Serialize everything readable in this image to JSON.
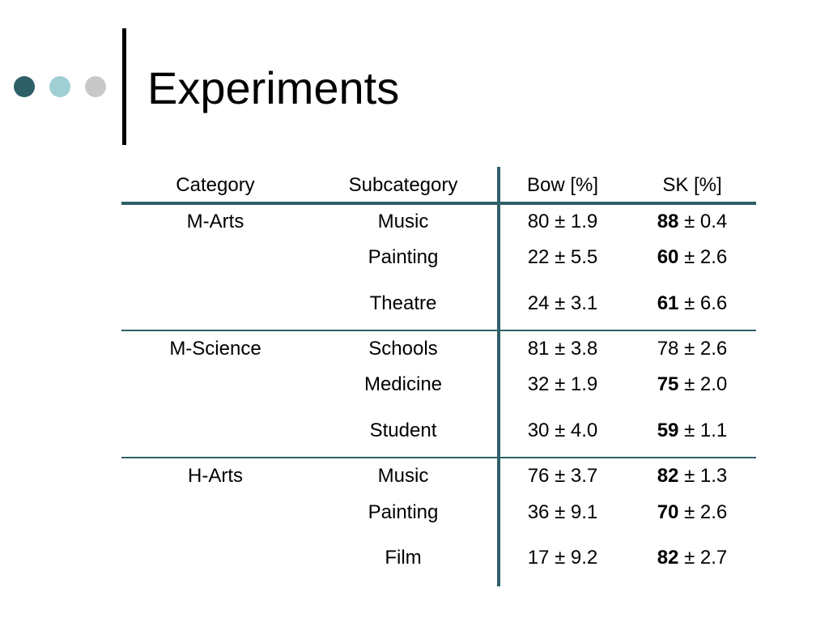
{
  "slide": {
    "title": "Experiments",
    "colors": {
      "accent": "#2f6068",
      "dot_light": "#9fcfd2",
      "dot_gray": "#c8c8c8"
    }
  },
  "table": {
    "headers": [
      "Category",
      "Subcategory",
      "Bow [%]",
      "SK [%]"
    ],
    "rows": [
      {
        "category": "M-Arts",
        "subcategory": "Music",
        "bow": "80 ± 1.9",
        "sk_bold": "88",
        "sk_rest": " ± 0.4"
      },
      {
        "category": "",
        "subcategory": "Painting",
        "bow": "22 ± 5.5",
        "sk_bold": "60",
        "sk_rest": " ± 2.6"
      },
      {
        "category": "",
        "subcategory": "Theatre",
        "bow": "24 ± 3.1",
        "sk_bold": "61",
        "sk_rest": " ± 6.6"
      },
      {
        "category": "M-Science",
        "subcategory": "Schools",
        "bow": "81 ± 3.8",
        "sk_bold": "",
        "sk_rest": "78 ± 2.6"
      },
      {
        "category": "",
        "subcategory": "Medicine",
        "bow": "32 ± 1.9",
        "sk_bold": "75",
        "sk_rest": " ± 2.0"
      },
      {
        "category": "",
        "subcategory": "Student",
        "bow": "30 ± 4.0",
        "sk_bold": "59",
        "sk_rest": " ± 1.1"
      },
      {
        "category": "H-Arts",
        "subcategory": "Music",
        "bow": "76 ± 3.7",
        "sk_bold": "82",
        "sk_rest": " ± 1.3"
      },
      {
        "category": "",
        "subcategory": "Painting",
        "bow": "36 ± 9.1",
        "sk_bold": "70",
        "sk_rest": " ± 2.6"
      },
      {
        "category": "",
        "subcategory": "Film",
        "bow": "17 ± 9.2",
        "sk_bold": "82",
        "sk_rest": " ± 2.7"
      }
    ]
  }
}
